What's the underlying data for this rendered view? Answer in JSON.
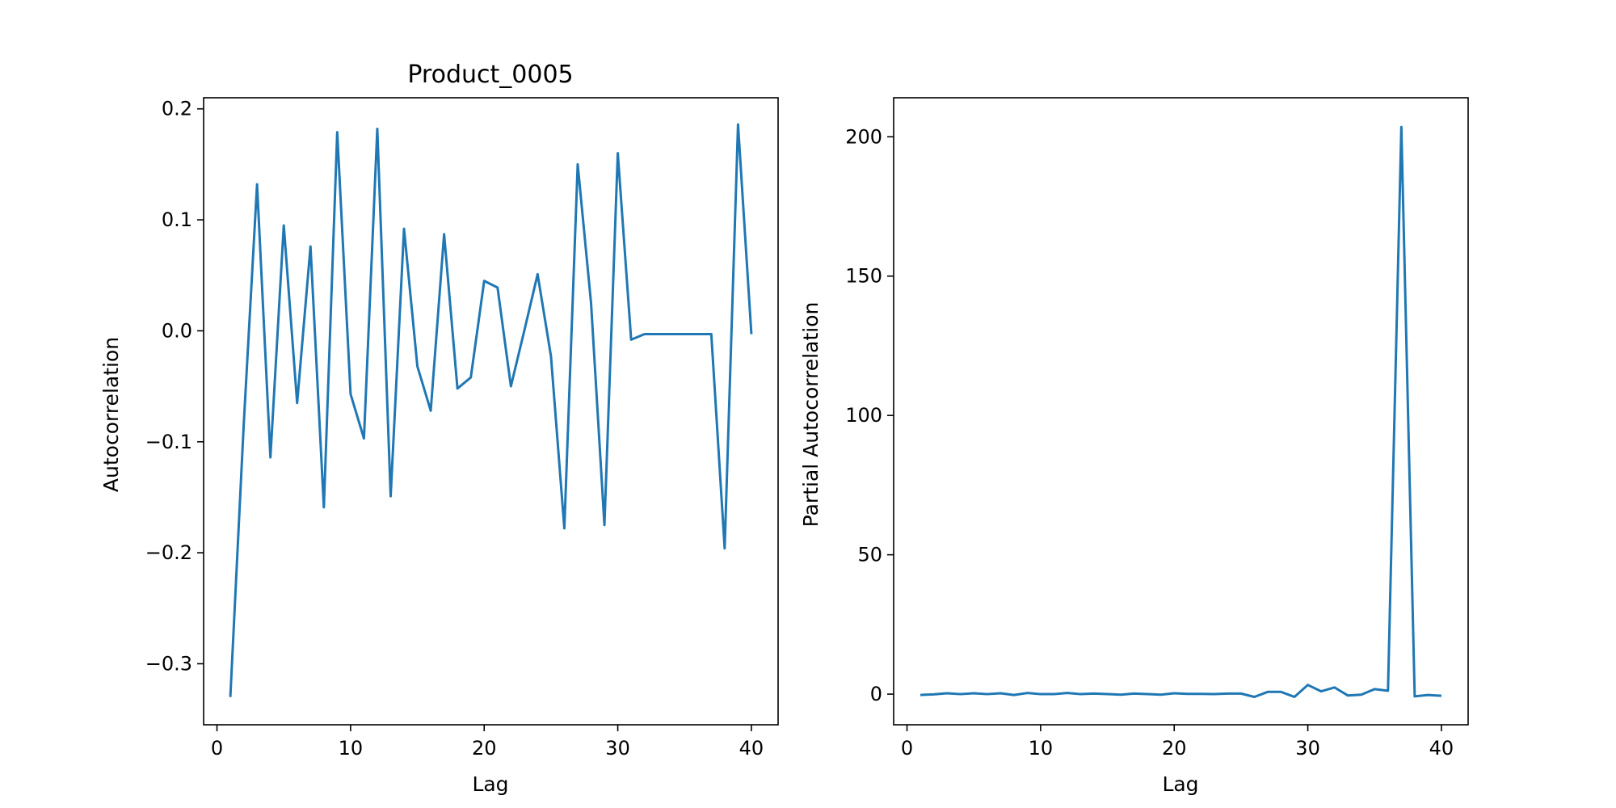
{
  "chart_data": [
    {
      "type": "line",
      "title": "Product_0005",
      "xlabel": "Lag",
      "ylabel": "Autocorrelation",
      "xlim": [
        -1,
        42
      ],
      "ylim": [
        -0.355,
        0.21
      ],
      "xticks": [
        0,
        10,
        20,
        30,
        40
      ],
      "xtick_labels": [
        "0",
        "10",
        "20",
        "30",
        "40"
      ],
      "yticks": [
        -0.3,
        -0.2,
        -0.1,
        0.0,
        0.1,
        0.2
      ],
      "ytick_labels": [
        "−0.3",
        "−0.2",
        "−0.1",
        "0.0",
        "0.1",
        "0.2"
      ],
      "grid": false,
      "line_color": "#1f77b4",
      "series": [
        {
          "x": [
            1,
            2,
            3,
            4,
            5,
            6,
            7,
            8,
            9,
            10,
            11,
            12,
            13,
            14,
            15,
            16,
            17,
            18,
            19,
            20,
            21,
            22,
            23,
            24,
            25,
            26,
            27,
            28,
            29,
            30,
            31,
            32,
            33,
            34,
            35,
            36,
            37,
            38,
            39,
            40
          ],
          "values": [
            -0.33,
            -0.085,
            0.132,
            -0.114,
            0.095,
            -0.065,
            0.076,
            -0.159,
            0.179,
            -0.057,
            -0.097,
            0.182,
            -0.149,
            0.092,
            -0.032,
            -0.072,
            0.087,
            -0.052,
            -0.042,
            0.045,
            0.039,
            -0.05,
            0.0,
            0.051,
            -0.023,
            -0.178,
            0.15,
            0.025,
            -0.175,
            0.16,
            -0.008,
            -0.003,
            -0.003,
            -0.003,
            -0.003,
            -0.003,
            -0.003,
            -0.196,
            0.186,
            -0.003
          ]
        }
      ]
    },
    {
      "type": "line",
      "title": "",
      "xlabel": "Lag",
      "ylabel": "Partial Autocorrelation",
      "xlim": [
        -1,
        42
      ],
      "ylim": [
        -11,
        214
      ],
      "xticks": [
        0,
        10,
        20,
        30,
        40
      ],
      "xtick_labels": [
        "0",
        "10",
        "20",
        "30",
        "40"
      ],
      "yticks": [
        0,
        50,
        100,
        150,
        200
      ],
      "ytick_labels": [
        "0",
        "50",
        "100",
        "150",
        "200"
      ],
      "grid": false,
      "line_color": "#1f77b4",
      "series": [
        {
          "x": [
            1,
            2,
            3,
            4,
            5,
            6,
            7,
            8,
            9,
            10,
            11,
            12,
            13,
            14,
            15,
            16,
            17,
            18,
            19,
            20,
            21,
            22,
            23,
            24,
            25,
            26,
            27,
            28,
            29,
            30,
            31,
            32,
            33,
            34,
            35,
            36,
            37,
            38,
            39,
            40
          ],
          "values": [
            -0.3,
            -0.1,
            0.3,
            0.0,
            0.3,
            0.0,
            0.3,
            -0.3,
            0.4,
            0.0,
            0.0,
            0.4,
            0.0,
            0.2,
            0.0,
            -0.2,
            0.2,
            0.0,
            -0.2,
            0.3,
            0.1,
            0.1,
            0.0,
            0.2,
            0.2,
            -1.0,
            0.8,
            0.8,
            -1.0,
            3.3,
            1.0,
            2.4,
            -0.5,
            -0.2,
            1.8,
            1.2,
            203.5,
            -0.8,
            -0.3,
            -0.6
          ]
        }
      ]
    }
  ]
}
